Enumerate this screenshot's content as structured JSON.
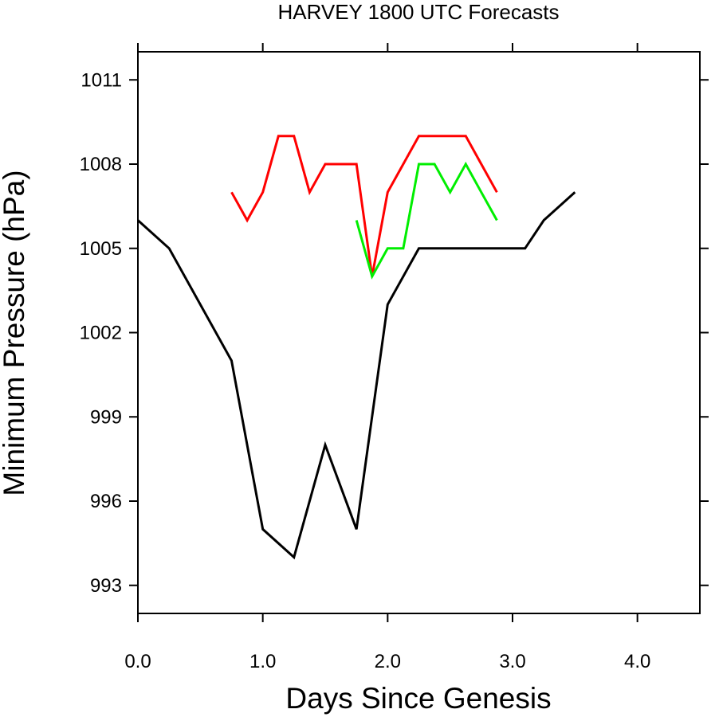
{
  "chart_data": {
    "type": "line",
    "title": "HARVEY 1800 UTC Forecasts",
    "xlabel": "Days Since Genesis",
    "ylabel": "Minimum Pressure (hPa)",
    "xlim": [
      0,
      4.5
    ],
    "ylim": [
      992,
      1012
    ],
    "xticks": [
      0,
      1,
      2,
      3,
      4
    ],
    "xtick_labels": [
      "0.0",
      "1.0",
      "2.0",
      "3.0",
      "4.0"
    ],
    "yticks": [
      993,
      996,
      999,
      1002,
      1005,
      1008,
      1011
    ],
    "ytick_labels": [
      "993",
      "996",
      "999",
      "1002",
      "1005",
      "1008",
      "1011"
    ],
    "grid": false,
    "series": [
      {
        "color": "#000000",
        "x": [
          0.0,
          0.25,
          0.75,
          1.0,
          1.25,
          1.5,
          1.75,
          2.0,
          2.25,
          2.5,
          2.75,
          3.1,
          3.25,
          3.5
        ],
        "y": [
          1006,
          1005,
          1001,
          995,
          994,
          998,
          995,
          1003,
          1005,
          1005,
          1005,
          1005,
          1006,
          1007
        ]
      },
      {
        "color": "#ff0000",
        "x": [
          0.75,
          0.875,
          1.0,
          1.125,
          1.25,
          1.375,
          1.5,
          1.625,
          1.75,
          1.875,
          2.0,
          2.125,
          2.25,
          2.375,
          2.5,
          2.625,
          2.75,
          2.875
        ],
        "y": [
          1007,
          1006,
          1007,
          1009,
          1009,
          1007,
          1008,
          1008,
          1008,
          1004,
          1007,
          1008,
          1009,
          1009,
          1009,
          1009,
          1008,
          1007
        ]
      },
      {
        "color": "#00ee00",
        "x": [
          1.75,
          1.875,
          2.0,
          2.125,
          2.25,
          2.375,
          2.5,
          2.625,
          2.75,
          2.875
        ],
        "y": [
          1006,
          1004,
          1005,
          1005,
          1008,
          1008,
          1007,
          1008,
          1007,
          1006
        ]
      }
    ]
  }
}
